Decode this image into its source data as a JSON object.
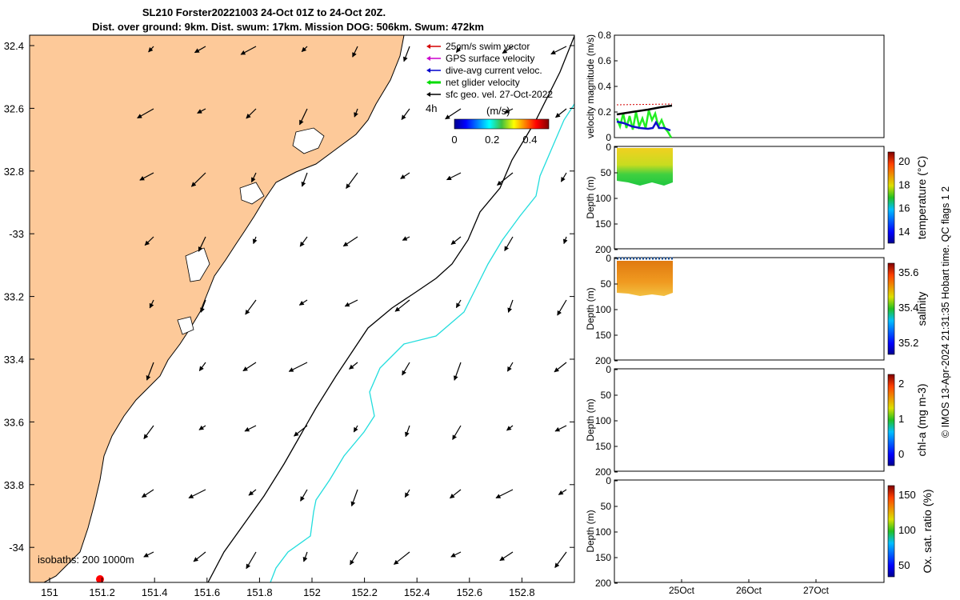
{
  "title": {
    "line1": "SL210 Forster20221003 24-Oct 01Z to 24-Oct 20Z.",
    "line2": "Dist. over ground: 9km. Dist. swum: 17km. Mission DOG: 506km. Swum: 472km"
  },
  "map": {
    "lat_ticks": [
      "32.4",
      "32.6",
      "32.8",
      "-33",
      "33.2",
      "33.4",
      "33.6",
      "33.8",
      "-34"
    ],
    "lon_ticks": [
      "151",
      "151.2",
      "151.4",
      "151.6",
      "151.8",
      "152",
      "152.2",
      "152.4",
      "152.6",
      "152.8"
    ],
    "land_color": "#fdc999",
    "legend": [
      {
        "label": "25cm/s swim vector",
        "color": "#d40000"
      },
      {
        "label": "GPS surface velocity",
        "color": "#cc00cc"
      },
      {
        "label": "dive-avg current veloc.",
        "color": "#0000cc"
      },
      {
        "label": "net glider velocity",
        "color": "#00dd00"
      },
      {
        "label": "sfc geo. vel. 27-Oct-2022",
        "color": "#000000"
      }
    ],
    "time_label": "4h",
    "colorbar": {
      "title": "(m/s)",
      "ticks": [
        "0",
        "0.2",
        "0.4"
      ],
      "range": [
        0,
        0.5
      ]
    },
    "isobath_label": "isobaths: 200  1000m"
  },
  "panels": {
    "velocity": {
      "ylabel": "velocity magnitude (m/s)",
      "yticks": [
        "0",
        "0.2",
        "0.4",
        "0.6",
        "0.8"
      ],
      "ylim": [
        0,
        0.8
      ]
    },
    "temperature": {
      "ylabel": "Depth (m)",
      "yticks": [
        "0",
        "50",
        "100",
        "150",
        "200"
      ],
      "cbar_label": "temperature (°C)",
      "cbar_ticks": [
        "14",
        "16",
        "18",
        "20"
      ]
    },
    "salinity": {
      "ylabel": "Depth (m)",
      "yticks": [
        "0",
        "50",
        "100",
        "150",
        "200"
      ],
      "cbar_label": "salinity",
      "cbar_ticks": [
        "35.2",
        "35.4",
        "35.6"
      ]
    },
    "chla": {
      "ylabel": "Depth (m)",
      "yticks": [
        "0",
        "50",
        "100",
        "150",
        "200"
      ],
      "cbar_label": "chl-a (mg m-3)",
      "cbar_ticks": [
        "0",
        "1",
        "2"
      ]
    },
    "oxygen": {
      "ylabel": "Depth (m)",
      "yticks": [
        "0",
        "50",
        "100",
        "150",
        "200"
      ],
      "cbar_label": "Ox. sat. ratio (%)",
      "cbar_ticks": [
        "50",
        "100",
        "150"
      ]
    },
    "xticks": [
      "25Oct",
      "26Oct",
      "27Oct"
    ]
  },
  "side_credit": "© IMOS 13-Apr-2024 21:31:35 Hobart time. QC flags 1  2"
}
